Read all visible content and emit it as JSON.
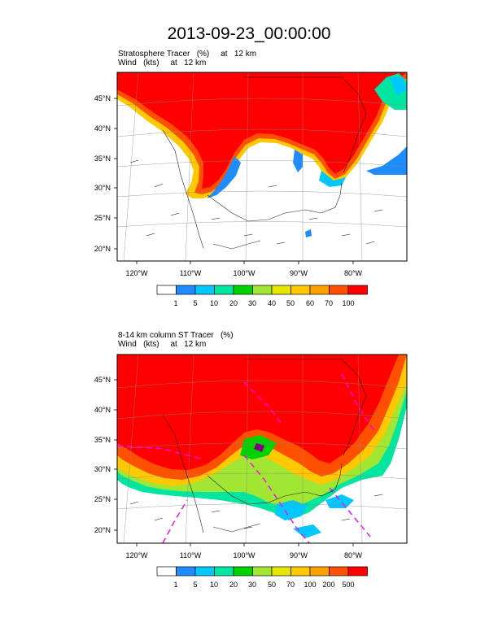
{
  "title": "2013-09-23_00:00:00",
  "panels": [
    {
      "id": "top",
      "line1": "Stratosphere Tracer   (%)     at   12 km",
      "line2": "Wind   (kts)     at   12 km",
      "lat_labels": [
        "45°N",
        "40°N",
        "35°N",
        "30°N",
        "25°N",
        "20°N"
      ],
      "lon_labels": [
        "120°W",
        "110°W",
        "100°W",
        "90°W",
        "80°W"
      ],
      "colorbar_labels": [
        "1",
        "5",
        "10",
        "20",
        "30",
        "40",
        "50",
        "60",
        "70",
        "100"
      ],
      "colors": [
        "#ffffff",
        "#1e8cff",
        "#00c8ff",
        "#00e6a0",
        "#00d200",
        "#a0e632",
        "#e6e600",
        "#ffc800",
        "#ffa000",
        "#ff5000",
        "#ff0000"
      ]
    },
    {
      "id": "bottom",
      "line1": "8-14 km column ST Tracer   (%)",
      "line2": "Wind   (kts)     at   12 km",
      "lat_labels": [
        "45°N",
        "40°N",
        "35°N",
        "30°N",
        "25°N",
        "20°N"
      ],
      "lon_labels": [
        "120°W",
        "110°W",
        "100°W",
        "90°W",
        "80°W"
      ],
      "colorbar_labels": [
        "1",
        "5",
        "10",
        "20",
        "30",
        "50",
        "70",
        "100",
        "200",
        "500"
      ],
      "colors": [
        "#ffffff",
        "#1e8cff",
        "#00c8ff",
        "#00e6a0",
        "#00d200",
        "#a0e632",
        "#e6e600",
        "#ffc800",
        "#ffa000",
        "#ff5000",
        "#ff0000"
      ]
    }
  ]
}
